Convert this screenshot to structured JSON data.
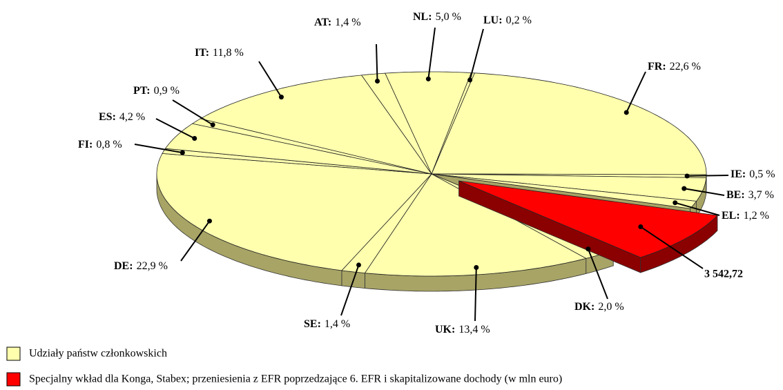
{
  "chart_data": {
    "type": "pie",
    "series": [
      {
        "name": "Udziały państw członkowskich",
        "color": "#ffffae",
        "categories": [
          "FR:",
          "IE:",
          "BE:",
          "EL:",
          "DK:",
          "UK:",
          "SE:",
          "DE:",
          "FI:",
          "ES:",
          "PT:",
          "IT:",
          "AT:",
          "NL:",
          "LU:"
        ],
        "values": [
          22.6,
          0.5,
          3.7,
          1.2,
          2.0,
          13.4,
          1.4,
          22.9,
          0.8,
          4.2,
          0.9,
          11.8,
          1.4,
          5.0,
          0.2
        ],
        "value_labels": [
          "22,6 %",
          "0,5 %",
          "3,7 %",
          "1,2 %",
          "2,0 %",
          "13,4 %",
          "1,4 %",
          "22,9 %",
          "0,8 %",
          "4,2 %",
          "0,9 %",
          "11,8 %",
          "1,4 %",
          "5,0 %",
          "0,2 %"
        ]
      },
      {
        "name": "Specjalny wkład dla Konga, Stabex; przeniesienia z EFR poprzedzające 6. EFR i skapitalizowane dochody (w mln euro)",
        "color": "#ff0000",
        "values": [
          3542.72
        ],
        "value_labels": [
          "3 542,72"
        ]
      }
    ]
  }
}
